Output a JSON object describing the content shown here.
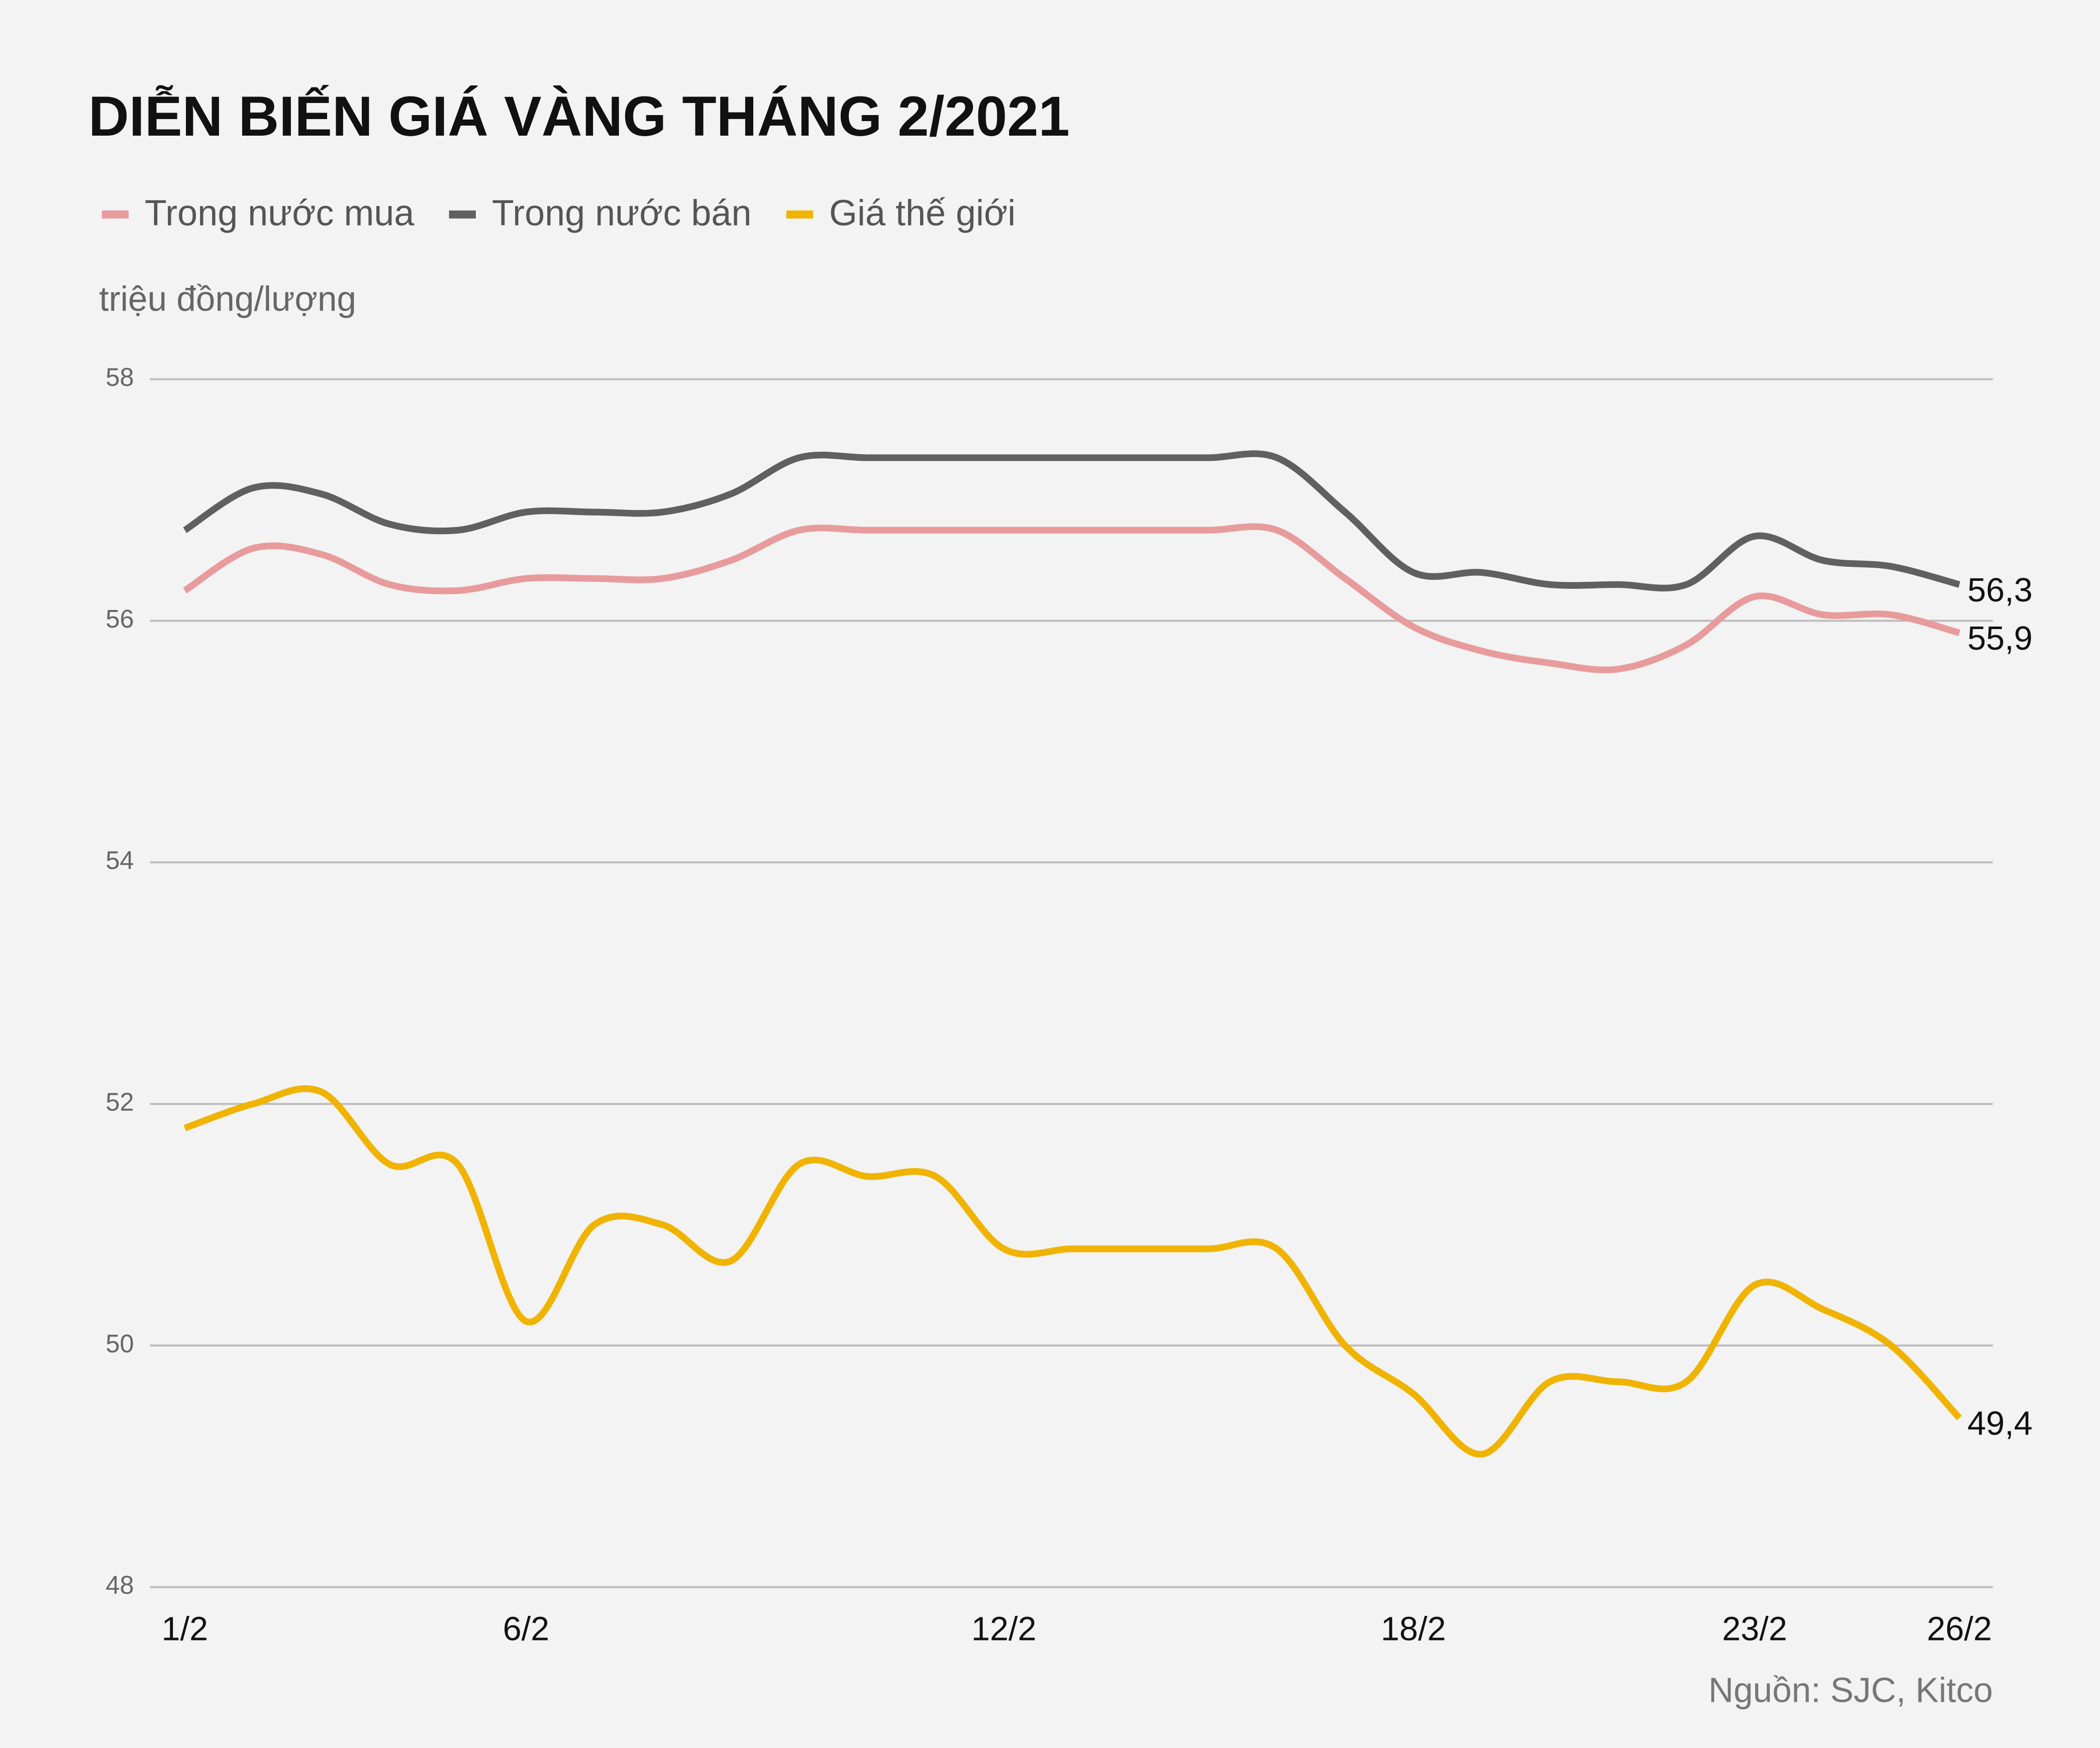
{
  "chart_data": {
    "type": "line",
    "title": "DIỄN BIẾN GIÁ VÀNG THÁNG 2/2021",
    "y_label": "triệu đồng/lượng",
    "source": "Nguồn: SJC, Kitco",
    "categories": [
      "1/2",
      null,
      null,
      null,
      null,
      "6/2",
      null,
      null,
      null,
      null,
      null,
      null,
      "12/2",
      null,
      null,
      null,
      null,
      null,
      "18/2",
      null,
      null,
      null,
      null,
      "23/2",
      null,
      null,
      "26/2"
    ],
    "series": [
      {
        "name": "Trong nước mua",
        "color": "#e89b9c",
        "values": [
          56.25,
          56.6,
          56.55,
          56.3,
          56.25,
          56.35,
          56.35,
          56.35,
          56.5,
          56.75,
          56.75,
          56.75,
          56.75,
          56.75,
          56.75,
          56.75,
          56.75,
          56.35,
          55.95,
          55.75,
          55.65,
          55.6,
          55.8,
          56.2,
          56.05,
          56.05,
          55.9
        ],
        "value_labels": [
          null,
          null,
          null,
          null,
          null,
          null,
          null,
          null,
          null,
          null,
          null,
          null,
          null,
          null,
          null,
          null,
          null,
          null,
          null,
          null,
          null,
          null,
          null,
          null,
          null,
          null,
          "55,9"
        ]
      },
      {
        "name": "Trong nước bán",
        "color": "#606060",
        "values": [
          56.75,
          57.1,
          57.05,
          56.8,
          56.75,
          56.9,
          56.9,
          56.9,
          57.05,
          57.35,
          57.35,
          57.35,
          57.35,
          57.35,
          57.35,
          57.35,
          57.35,
          56.9,
          56.4,
          56.4,
          56.3,
          56.3,
          56.3,
          56.7,
          56.5,
          56.45,
          56.3
        ],
        "value_labels": [
          null,
          null,
          null,
          null,
          null,
          null,
          null,
          null,
          null,
          null,
          null,
          null,
          null,
          null,
          null,
          null,
          null,
          null,
          null,
          null,
          null,
          null,
          null,
          null,
          null,
          null,
          "56,3"
        ]
      },
      {
        "name": "Giá thế giới",
        "color": "#f0b400",
        "values": [
          51.8,
          52.0,
          52.1,
          51.5,
          51.5,
          50.2,
          51.0,
          51.0,
          50.7,
          51.5,
          51.4,
          51.4,
          50.8,
          50.8,
          50.8,
          50.8,
          50.8,
          50.0,
          49.6,
          49.1,
          49.7,
          49.7,
          49.7,
          50.5,
          50.3,
          50.0,
          49.4
        ],
        "value_labels": [
          null,
          null,
          null,
          null,
          null,
          null,
          null,
          null,
          null,
          null,
          null,
          null,
          null,
          null,
          null,
          null,
          null,
          null,
          null,
          null,
          null,
          null,
          null,
          null,
          null,
          null,
          "49,4"
        ]
      }
    ],
    "ylim": [
      48,
      58
    ],
    "yticks": [
      48,
      50,
      52,
      54,
      56,
      58
    ],
    "grid": true,
    "legend": "top-left"
  }
}
